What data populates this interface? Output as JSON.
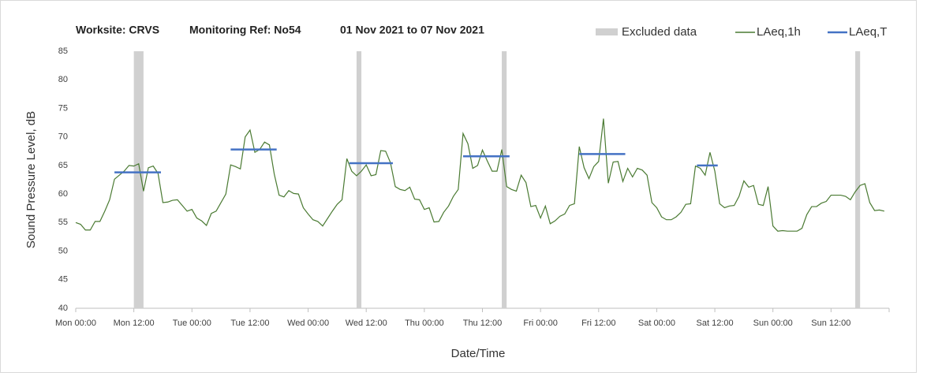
{
  "chart_data": {
    "type": "line",
    "title_parts": [
      "Worksite: CRVS",
      "Monitoring Ref: No54",
      "01 Nov 2021 to 07 Nov 2021"
    ],
    "x_label": "Date/Time",
    "y_label": "Sound Pressure Level, dB",
    "xlim": [
      0,
      168
    ],
    "xticks": [
      {
        "value": 0,
        "label": "Mon 00:00"
      },
      {
        "value": 12,
        "label": "Mon 12:00"
      },
      {
        "value": 24,
        "label": "Tue 00:00"
      },
      {
        "value": 36,
        "label": "Tue 12:00"
      },
      {
        "value": 48,
        "label": "Wed 00:00"
      },
      {
        "value": 60,
        "label": "Wed 12:00"
      },
      {
        "value": 72,
        "label": "Thu 00:00"
      },
      {
        "value": 84,
        "label": "Thu 12:00"
      },
      {
        "value": 96,
        "label": "Fri 00:00"
      },
      {
        "value": 108,
        "label": "Fri 12:00"
      },
      {
        "value": 120,
        "label": "Sat 00:00"
      },
      {
        "value": 132,
        "label": "Sat 12:00"
      },
      {
        "value": 144,
        "label": "Sun 00:00"
      },
      {
        "value": 156,
        "label": "Sun 12:00"
      },
      {
        "value": 168,
        "label": ""
      }
    ],
    "ylim": [
      40,
      85
    ],
    "yticks": [
      40,
      45,
      50,
      55,
      60,
      65,
      70,
      75,
      80,
      85
    ],
    "excluded": {
      "name": "Excluded data",
      "color": "#d0d0d0",
      "start": [
        12,
        58,
        88,
        161
      ],
      "end": [
        14,
        59,
        89,
        162
      ]
    },
    "series": [
      {
        "name": "LAeq,1h",
        "color": "#4a7a32",
        "x": [
          0,
          1,
          2,
          3,
          4,
          5,
          6,
          7,
          8,
          9,
          10,
          11,
          12,
          13,
          14,
          15,
          16,
          17,
          18,
          19,
          20,
          21,
          22,
          23,
          24,
          25,
          26,
          27,
          28,
          29,
          30,
          31,
          32,
          33,
          34,
          35,
          36,
          37,
          38,
          39,
          40,
          41,
          42,
          43,
          44,
          45,
          46,
          47,
          48,
          49,
          50,
          51,
          52,
          53,
          54,
          55,
          56,
          57,
          58,
          59,
          60,
          61,
          62,
          63,
          64,
          65,
          66,
          67,
          68,
          69,
          70,
          71,
          72,
          73,
          74,
          75,
          76,
          77,
          78,
          79,
          80,
          81,
          82,
          83,
          84,
          85,
          86,
          87,
          88,
          89,
          90,
          91,
          92,
          93,
          94,
          95,
          96,
          97,
          98,
          99,
          100,
          101,
          102,
          103,
          104,
          105,
          106,
          107,
          108,
          109,
          110,
          111,
          112,
          113,
          114,
          115,
          116,
          117,
          118,
          119,
          120,
          121,
          122,
          123,
          124,
          125,
          126,
          127,
          128,
          129,
          130,
          131,
          132,
          133,
          134,
          135,
          136,
          137,
          138,
          139,
          140,
          141,
          142,
          143,
          144,
          145,
          146,
          147,
          148,
          149,
          150,
          151,
          152,
          153,
          154,
          155,
          156,
          157,
          158,
          159,
          160,
          161,
          162,
          163,
          164,
          165,
          166,
          167
        ],
        "values": [
          55,
          54.7,
          53.7,
          53.7,
          55.2,
          55.2,
          57,
          59,
          62.6,
          63.3,
          64,
          65,
          64.9,
          65.3,
          60.5,
          64.6,
          64.9,
          63.6,
          58.5,
          58.6,
          58.9,
          59,
          58,
          57,
          57.3,
          55.8,
          55.3,
          54.5,
          56.6,
          57,
          58.5,
          60,
          65.1,
          64.8,
          64.4,
          70,
          71.2,
          67.3,
          67.8,
          69.1,
          68.6,
          63.5,
          59.8,
          59.5,
          60.6,
          60.1,
          60,
          57.6,
          56.5,
          55.5,
          55.2,
          54.4,
          55.7,
          57,
          58.2,
          59,
          66.2,
          64,
          63.2,
          64,
          65.1,
          63.2,
          63.4,
          67.6,
          67.5,
          65.5,
          61.3,
          60.8,
          60.6,
          61.2,
          59.1,
          59,
          57.3,
          57.6,
          55.1,
          55.2,
          56.8,
          57.9,
          59.6,
          60.8,
          70.6,
          68.8,
          64.5,
          65,
          67.7,
          65.8,
          64,
          64,
          67.8,
          61.3,
          60.8,
          60.5,
          63.3,
          62,
          57.8,
          58,
          55.8,
          57.9,
          54.8,
          55.3,
          56.1,
          56.5,
          58,
          58.3,
          68.3,
          64.6,
          62.7,
          64.8,
          65.7,
          73.2,
          61.9,
          65.6,
          65.7,
          62.2,
          64.5,
          63,
          64.5,
          64.2,
          63.3,
          58.5,
          57.6,
          56,
          55.5,
          55.5,
          56,
          56.8,
          58.2,
          58.3,
          64.9,
          64.5,
          63.3,
          67.3,
          64,
          58.3,
          57.6,
          57.9,
          58,
          59.6,
          62.3,
          61.2,
          61.5,
          58.2,
          58,
          61.3,
          54.4,
          53.5,
          53.6,
          53.5,
          53.5,
          53.5,
          54,
          56.4,
          57.8,
          57.8,
          58.4,
          58.7,
          59.8,
          59.8,
          59.8,
          59.6,
          59,
          60.4,
          61.5,
          61.8,
          58.5,
          57.1,
          57.2,
          57
        ]
      }
    ],
    "periods": {
      "name": "LAeq,T",
      "color": "#4472c4",
      "start": [
        8,
        32,
        56.5,
        80,
        104,
        128.3
      ],
      "end": [
        17.6,
        41.5,
        65.5,
        89.6,
        113.5,
        132.6
      ],
      "values": [
        63.8,
        67.8,
        65.4,
        66.6,
        67,
        65
      ]
    }
  }
}
